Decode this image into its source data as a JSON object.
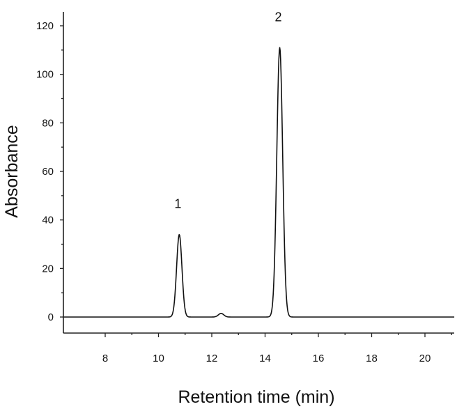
{
  "chart_data": {
    "type": "line",
    "title": "",
    "xlabel": "Retention time (min)",
    "ylabel": "Absorbance",
    "xlim": [
      6.4,
      21.1
    ],
    "ylim": [
      -8,
      126
    ],
    "x_ticks": [
      8,
      10,
      12,
      14,
      16,
      18,
      20
    ],
    "y_ticks": [
      0,
      20,
      40,
      60,
      80,
      100,
      120
    ],
    "grid": false,
    "legend": "none",
    "baseline": 0,
    "peaks": [
      {
        "label": "1",
        "retention_time": 10.78,
        "height": 34,
        "width_sigma": 0.1
      },
      {
        "label": "",
        "retention_time": 12.35,
        "height": 1.5,
        "width_sigma": 0.1
      },
      {
        "label": "2",
        "retention_time": 14.55,
        "height": 111,
        "width_sigma": 0.11
      }
    ],
    "series": [
      {
        "name": "",
        "color": "#111111"
      }
    ]
  }
}
